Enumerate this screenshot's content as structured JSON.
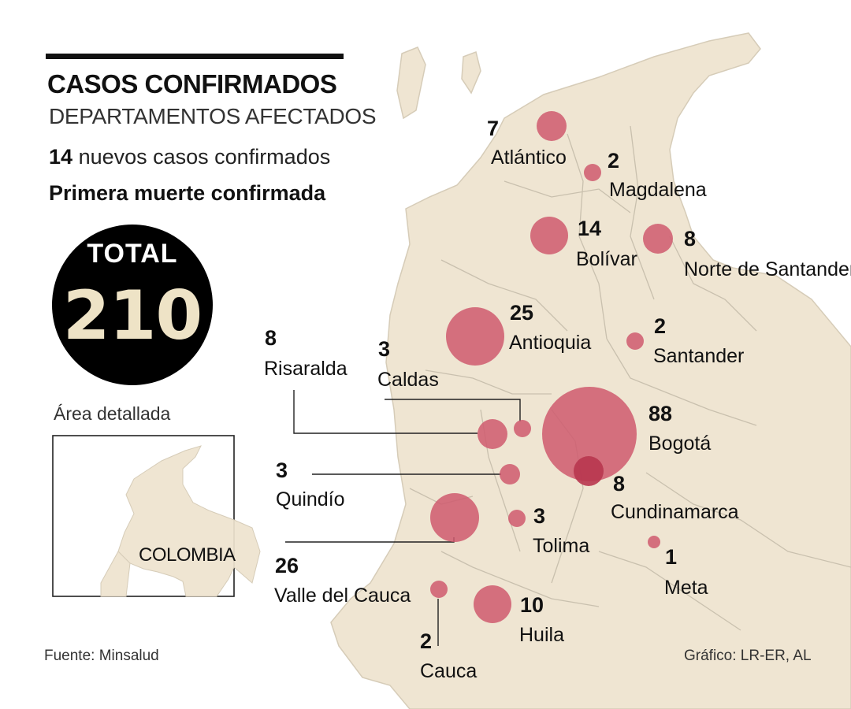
{
  "header": {
    "title": "CASOS CONFIRMADOS",
    "subtitle": "DEPARTAMENTOS AFECTADOS",
    "new_cases_count": "14",
    "new_cases_text": "nuevos casos confirmados",
    "first_death": "Primera muerte confirmada"
  },
  "total": {
    "label": "TOTAL",
    "value": "210"
  },
  "inset": {
    "caption": "Área detallada",
    "country": "COLOMBIA"
  },
  "departments": [
    {
      "name": "Atlántico",
      "cases": "7"
    },
    {
      "name": "Magdalena",
      "cases": "2"
    },
    {
      "name": "Bolívar",
      "cases": "14"
    },
    {
      "name": "Norte de Santander",
      "cases": "8"
    },
    {
      "name": "Antioquia",
      "cases": "25"
    },
    {
      "name": "Santander",
      "cases": "2"
    },
    {
      "name": "Risaralda",
      "cases": "8"
    },
    {
      "name": "Caldas",
      "cases": "3"
    },
    {
      "name": "Bogotá",
      "cases": "88"
    },
    {
      "name": "Cundinamarca",
      "cases": "8"
    },
    {
      "name": "Quindío",
      "cases": "3"
    },
    {
      "name": "Tolima",
      "cases": "3"
    },
    {
      "name": "Valle del Cauca",
      "cases": "26"
    },
    {
      "name": "Meta",
      "cases": "1"
    },
    {
      "name": "Huila",
      "cases": "10"
    },
    {
      "name": "Cauca",
      "cases": "2"
    }
  ],
  "colors": {
    "land": "#efe5d2",
    "border": "#c9c0ae",
    "bubble": "#cf5a6f",
    "bubble_dark": "#b8364f",
    "text": "#111111"
  },
  "footer": {
    "source": "Fuente: Minsalud",
    "credit": "Gráfico: LR-ER, AL"
  }
}
